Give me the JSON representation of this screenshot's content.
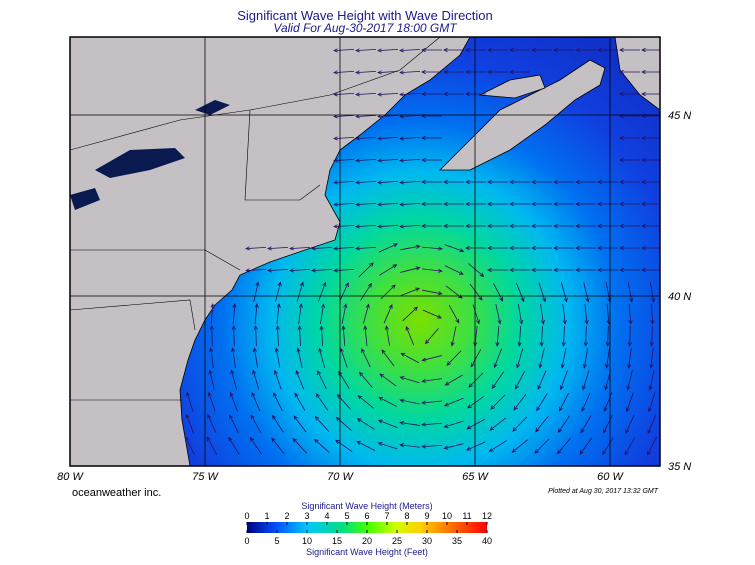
{
  "header": {
    "title": "Significant Wave Height with Wave Direction",
    "subtitle": "Valid For Aug-30-2017 18:00 GMT"
  },
  "map": {
    "lon_labels": [
      "80 W",
      "75 W",
      "70 W",
      "65 W",
      "60 W"
    ],
    "lat_labels": [
      "45 N",
      "40 N",
      "35 N"
    ]
  },
  "footer": {
    "credit": "oceanweather inc.",
    "plotted": "Plotted at Aug 30, 2017 13:32 GMT"
  },
  "legend": {
    "meters_title": "Significant Wave Height (Meters)",
    "meters_ticks": [
      0,
      1,
      2,
      3,
      4,
      5,
      6,
      7,
      8,
      9,
      10,
      11,
      12
    ],
    "feet_title": "Significant Wave Height (Feet)",
    "feet_ticks": [
      0,
      5,
      10,
      15,
      20,
      25,
      30,
      35,
      40
    ],
    "meters_max": 12,
    "feet_max": 40
  }
}
